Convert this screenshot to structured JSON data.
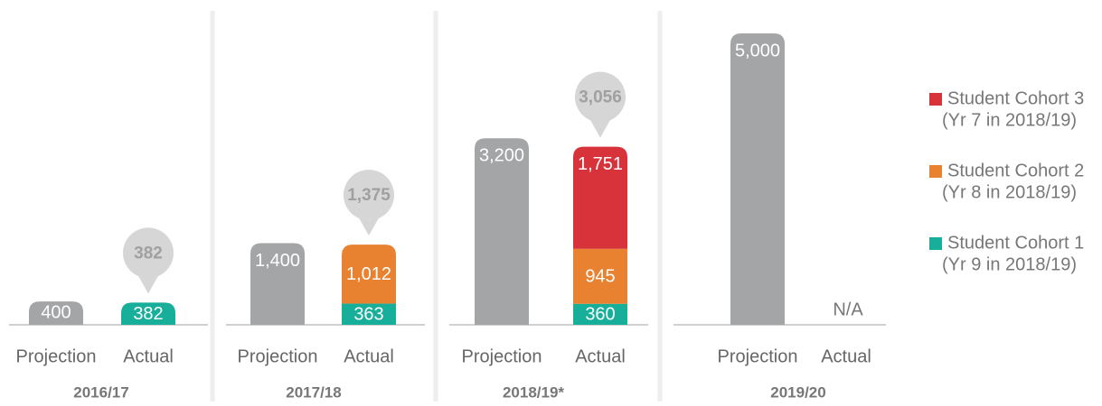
{
  "chart_data": {
    "type": "grouped_stacked_bar",
    "groups": [
      "2016/17",
      "2017/18",
      "2018/19*",
      "2019/20"
    ],
    "bar_labels": [
      "Projection",
      "Actual"
    ],
    "ylim": [
      0,
      5000
    ],
    "projection": {
      "name": "Projection",
      "color": "#a3a5a7",
      "values": [
        400,
        1400,
        3200,
        5000
      ],
      "value_labels": [
        "400",
        "1,400",
        "3,200",
        "5,000"
      ]
    },
    "series": [
      {
        "name": "Student Cohort 1",
        "note": "(Yr 9 in 2018/19)",
        "color": "#17ae9a",
        "values": [
          382,
          363,
          360,
          null
        ],
        "value_labels": [
          "382",
          "363",
          "360",
          null
        ]
      },
      {
        "name": "Student Cohort 2",
        "note": "(Yr 8 in 2018/19)",
        "color": "#e98230",
        "values": [
          null,
          1012,
          945,
          null
        ],
        "value_labels": [
          null,
          "1,012",
          "945",
          null
        ]
      },
      {
        "name": "Student Cohort 3",
        "note": "(Yr 7 in 2018/19)",
        "color": "#d8333a",
        "values": [
          null,
          null,
          1751,
          null
        ],
        "value_labels": [
          null,
          null,
          "1,751",
          null
        ]
      }
    ],
    "totals": {
      "color": "#d6d6d6",
      "values": [
        382,
        1375,
        3056,
        null
      ],
      "value_labels": [
        "382",
        "1,375",
        "3,056",
        null
      ]
    },
    "missing_label": "N/A"
  }
}
